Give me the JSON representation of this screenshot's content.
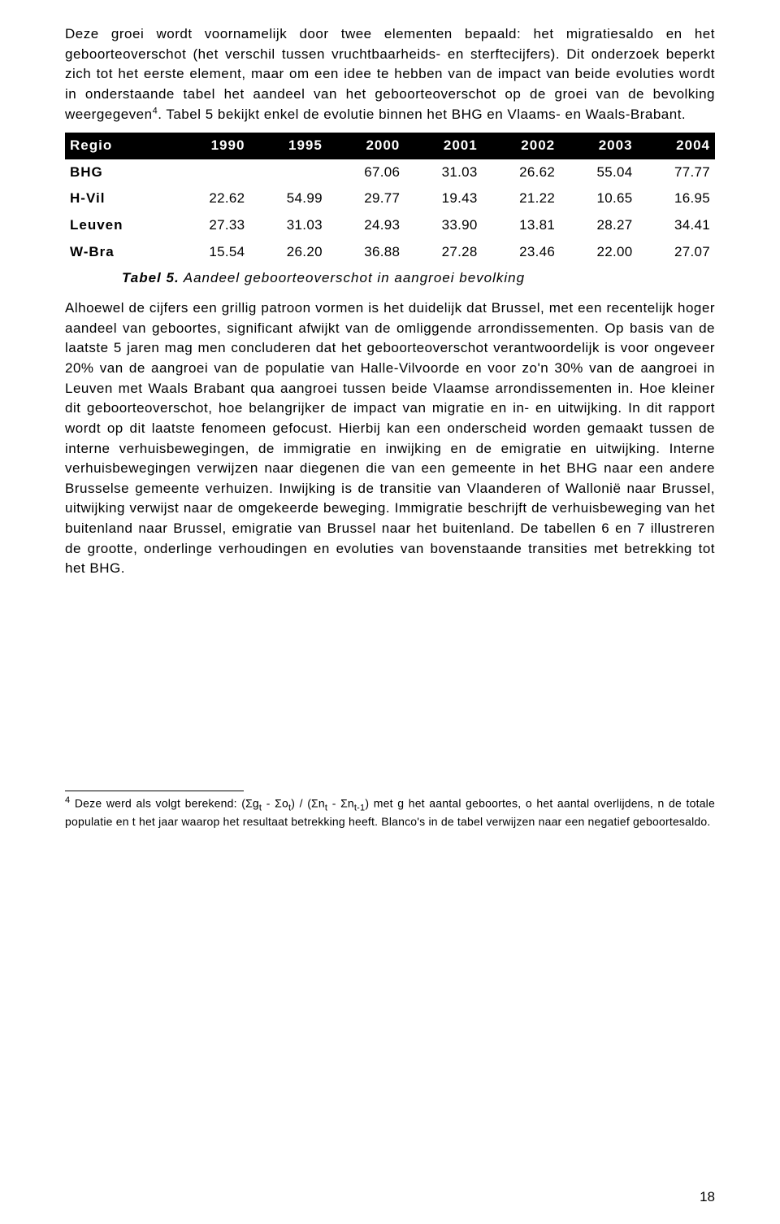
{
  "para1": "Deze groei wordt voornamelijk door twee elementen bepaald: het migratiesaldo en het geboorteoverschot (het verschil tussen vruchtbaarheids- en sterftecijfers). Dit onderzoek beperkt zich tot het eerste element, maar om een idee te hebben van de impact van beide evoluties wordt in onderstaande tabel het aandeel van het geboorteoverschot op de groei van de bevolking weergegeven",
  "fn_mark": "4",
  "para1b": ". Tabel 5 bekijkt enkel de evolutie binnen het BHG en Vlaams- en Waals-Brabant.",
  "table": {
    "columns": [
      "Regio",
      "1990",
      "1995",
      "2000",
      "2001",
      "2002",
      "2003",
      "2004"
    ],
    "rows": [
      {
        "region": "BHG",
        "cells": [
          "",
          "",
          "67.06",
          "31.03",
          "26.62",
          "55.04",
          "77.77"
        ]
      },
      {
        "region": "H-Vil",
        "cells": [
          "22.62",
          "54.99",
          "29.77",
          "19.43",
          "21.22",
          "10.65",
          "16.95"
        ]
      },
      {
        "region": "Leuven",
        "cells": [
          "27.33",
          "31.03",
          "24.93",
          "33.90",
          "13.81",
          "28.27",
          "34.41"
        ]
      },
      {
        "region": "W-Bra",
        "cells": [
          "15.54",
          "26.20",
          "36.88",
          "27.28",
          "23.46",
          "22.00",
          "27.07"
        ]
      }
    ]
  },
  "caption_bold": "Tabel 5.",
  "caption_rest": " Aandeel geboorteoverschot in aangroei bevolking",
  "para2": "Alhoewel de cijfers een grillig patroon vormen is het duidelijk dat Brussel, met een recentelijk hoger aandeel van geboortes, significant afwijkt van de omliggende arrondissementen. Op basis van de laatste 5 jaren mag men concluderen dat het geboorteoverschot verantwoordelijk is voor ongeveer 20% van de aangroei van de populatie van Halle-Vilvoorde en voor zo'n 30% van de aangroei in Leuven met Waals Brabant qua aangroei tussen beide Vlaamse arrondissementen in. Hoe kleiner dit geboorteoverschot, hoe belangrijker de impact van migratie en in- en uitwijking. In dit rapport wordt op dit laatste fenomeen gefocust. Hierbij kan een onderscheid worden gemaakt tussen de interne verhuisbewegingen, de immigratie en inwijking en de emigratie en uitwijking. Interne verhuisbewegingen verwijzen naar diegenen die van een gemeente in het BHG naar een andere Brusselse gemeente verhuizen. Inwijking is de transitie van Vlaanderen of Wallonië naar Brussel, uitwijking verwijst naar de omgekeerde beweging. Immigratie beschrijft de verhuisbeweging van het buitenland naar Brussel, emigratie van Brussel naar het buitenland. De tabellen 6 en 7 illustreren de grootte, onderlinge verhoudingen en evoluties van bovenstaande transities met betrekking tot het BHG.",
  "footnote_num": "4",
  "footnote_a": " Deze werd als volgt berekend: (Σg",
  "footnote_b": " - Σo",
  "footnote_c": ") / (Σn",
  "footnote_d": " - Σn",
  "footnote_e": ") met g het aantal geboortes, o het aantal overlijdens, n de totale populatie en t het jaar waarop het resultaat betrekking heeft. Blanco's in de tabel verwijzen naar een negatief geboortesaldo.",
  "sub_t": "t",
  "sub_t1": "t-1",
  "pagenum": "18"
}
